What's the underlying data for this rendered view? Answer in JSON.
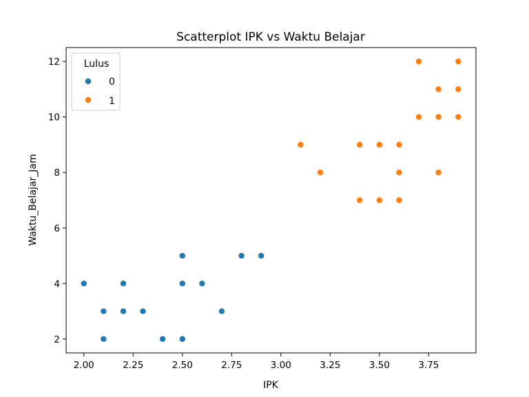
{
  "chart_data": {
    "type": "scatter",
    "title": "Scatterplot IPK vs Waktu Belajar",
    "xlabel": "IPK",
    "ylabel": "Waktu_Belajar_Jam",
    "xlim": [
      1.91,
      3.99
    ],
    "ylim": [
      1.5,
      12.5
    ],
    "xticks": [
      2.0,
      2.25,
      2.5,
      2.75,
      3.0,
      3.25,
      3.5,
      3.75
    ],
    "xtick_labels": [
      "2.00",
      "2.25",
      "2.50",
      "2.75",
      "3.00",
      "3.25",
      "3.50",
      "3.75"
    ],
    "yticks": [
      2,
      4,
      6,
      8,
      10,
      12
    ],
    "ytick_labels": [
      "2",
      "4",
      "6",
      "8",
      "10",
      "12"
    ],
    "grid": false,
    "legend": {
      "title": "Lulus",
      "placement": "top-left",
      "entries": [
        "0",
        "1"
      ]
    },
    "series": [
      {
        "name": "0",
        "color": "#1f77b4",
        "points": [
          {
            "x": 2.0,
            "y": 4
          },
          {
            "x": 2.1,
            "y": 3
          },
          {
            "x": 2.1,
            "y": 2
          },
          {
            "x": 2.2,
            "y": 4
          },
          {
            "x": 2.2,
            "y": 3
          },
          {
            "x": 2.3,
            "y": 3
          },
          {
            "x": 2.4,
            "y": 2
          },
          {
            "x": 2.5,
            "y": 5
          },
          {
            "x": 2.5,
            "y": 4
          },
          {
            "x": 2.5,
            "y": 2
          },
          {
            "x": 2.6,
            "y": 4
          },
          {
            "x": 2.7,
            "y": 3
          },
          {
            "x": 2.8,
            "y": 5
          },
          {
            "x": 2.9,
            "y": 5
          }
        ]
      },
      {
        "name": "1",
        "color": "#ff7f0e",
        "points": [
          {
            "x": 3.1,
            "y": 9
          },
          {
            "x": 3.2,
            "y": 8
          },
          {
            "x": 3.4,
            "y": 9
          },
          {
            "x": 3.4,
            "y": 7
          },
          {
            "x": 3.5,
            "y": 9
          },
          {
            "x": 3.5,
            "y": 7
          },
          {
            "x": 3.6,
            "y": 9
          },
          {
            "x": 3.6,
            "y": 8
          },
          {
            "x": 3.6,
            "y": 7
          },
          {
            "x": 3.7,
            "y": 12
          },
          {
            "x": 3.7,
            "y": 10
          },
          {
            "x": 3.8,
            "y": 11
          },
          {
            "x": 3.8,
            "y": 10
          },
          {
            "x": 3.8,
            "y": 8
          },
          {
            "x": 3.9,
            "y": 12
          },
          {
            "x": 3.9,
            "y": 11
          },
          {
            "x": 3.9,
            "y": 10
          }
        ]
      }
    ]
  }
}
